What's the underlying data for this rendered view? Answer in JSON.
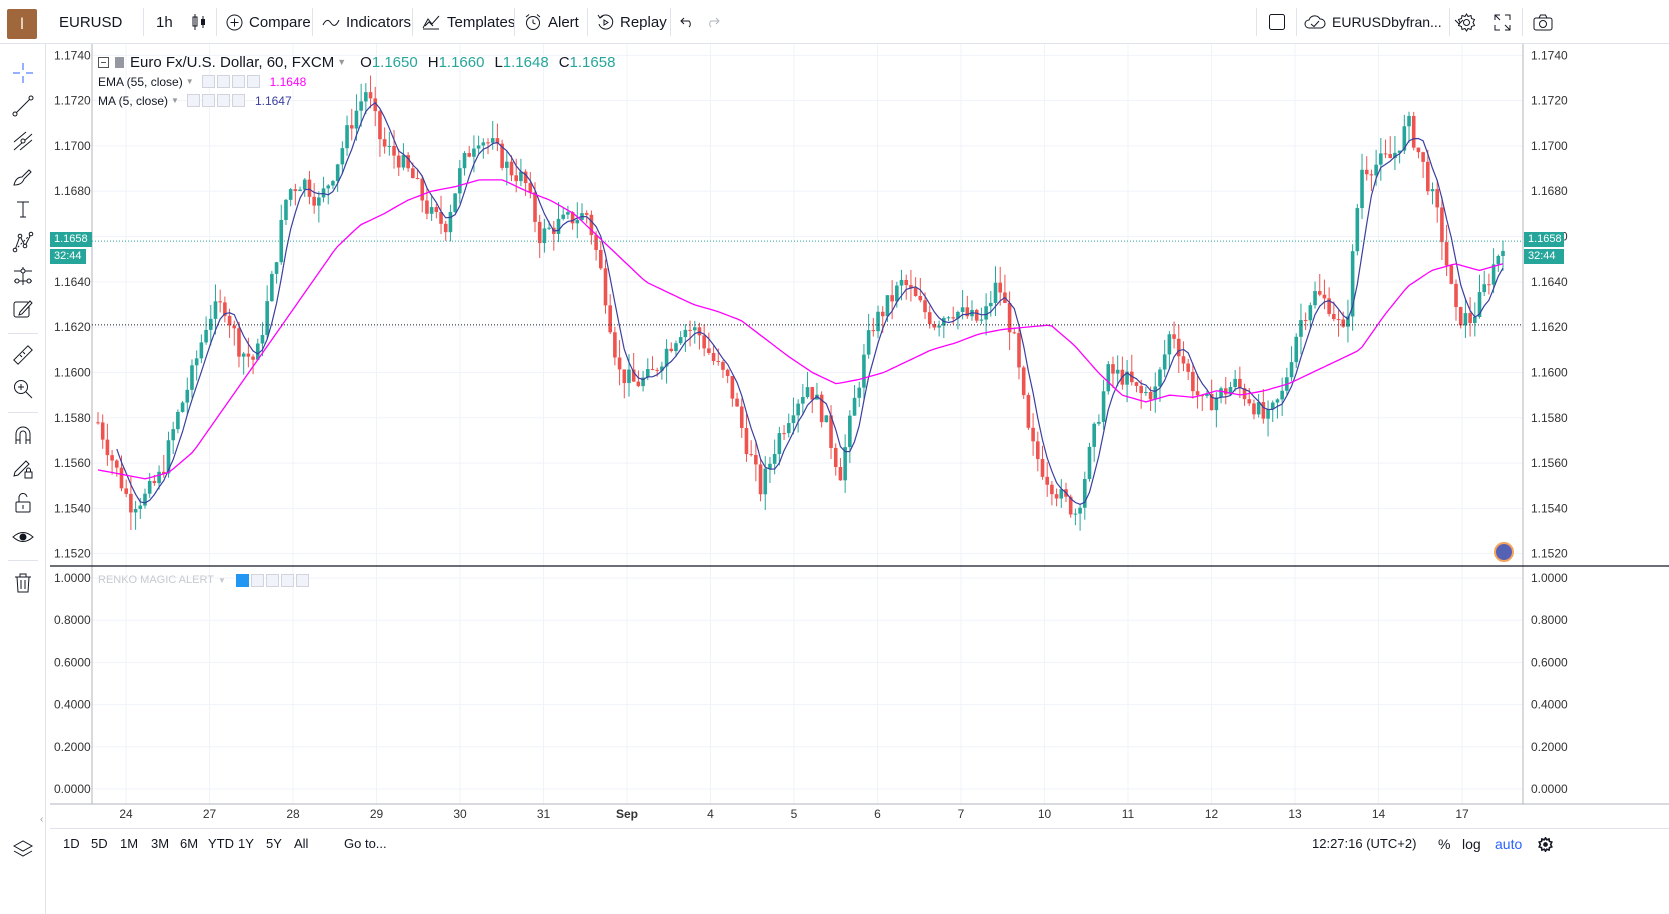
{
  "topbar": {
    "avatar_letter": "I",
    "symbol": "EURUSD",
    "interval": "1h",
    "compare": "Compare",
    "indicators": "Indicators",
    "templates": "Templates",
    "alert": "Alert",
    "replay": "Replay",
    "layout_name": "EURUSDbyfran..."
  },
  "legend": {
    "title": "Euro Fx/U.S. Dollar, 60, FXCM",
    "o_label": "O",
    "o_value": "1.1650",
    "h_label": "H",
    "h_value": "1.1660",
    "l_label": "L",
    "l_value": "1.1648",
    "c_label": "C",
    "c_value": "1.1658",
    "ema_label": "EMA (55, close)",
    "ema_value": "1.1648",
    "ma_label": "MA (5, close)",
    "ma_value": "1.1647",
    "renko_label": "RENKO MAGIC ALERT"
  },
  "price_axis": {
    "ticks": [
      "1.1740",
      "1.1720",
      "1.1700",
      "1.1680",
      "1.1660",
      "1.1640",
      "1.1620",
      "1.1600",
      "1.1580",
      "1.1560",
      "1.1540",
      "1.1520"
    ],
    "current_price": "1.1658",
    "countdown": "32:44"
  },
  "indicator_axis": {
    "ticks": [
      "1.0000",
      "0.8000",
      "0.6000",
      "0.4000",
      "0.2000",
      "0.0000"
    ]
  },
  "time_axis": {
    "labels": [
      "24",
      "27",
      "28",
      "29",
      "30",
      "31",
      "Sep",
      "4",
      "5",
      "6",
      "7",
      "10",
      "11",
      "12",
      "13",
      "14",
      "17"
    ]
  },
  "bottombar": {
    "ranges": [
      "1D",
      "5D",
      "1M",
      "3M",
      "6M",
      "YTD",
      "1Y",
      "5Y",
      "All"
    ],
    "goto": "Go to...",
    "clock": "12:27:16 (UTC+2)",
    "percent": "%",
    "log": "log",
    "auto": "auto"
  },
  "colors": {
    "up": "#26a69a",
    "down": "#ef5350",
    "ema": "#ff00ff",
    "ma": "#3a3fa0",
    "accent": "#2962ff"
  },
  "chart_data": {
    "type": "candlestick",
    "title": "Euro Fx/U.S. Dollar, 60, FXCM",
    "ylim": [
      1.1515,
      1.1745
    ],
    "x_labels": [
      "24",
      "27",
      "28",
      "29",
      "30",
      "31",
      "Sep",
      "4",
      "5",
      "6",
      "7",
      "10",
      "11",
      "12",
      "13",
      "14",
      "17"
    ],
    "series": [
      {
        "name": "EMA (55, close)",
        "last": 1.1648
      },
      {
        "name": "MA (5, close)",
        "last": 1.1647
      }
    ],
    "close_path": [
      1.1578,
      1.156,
      1.1542,
      1.1545,
      1.1555,
      1.158,
      1.16,
      1.1625,
      1.163,
      1.161,
      1.1605,
      1.164,
      1.168,
      1.1685,
      1.1675,
      1.169,
      1.171,
      1.1725,
      1.17,
      1.1695,
      1.1685,
      1.167,
      1.1665,
      1.169,
      1.1705,
      1.17,
      1.169,
      1.1685,
      1.166,
      1.1665,
      1.1668,
      1.167,
      1.164,
      1.16,
      1.1595,
      1.1598,
      1.161,
      1.162,
      1.1618,
      1.1605,
      1.1595,
      1.157,
      1.1548,
      1.157,
      1.1585,
      1.1595,
      1.158,
      1.1555,
      1.159,
      1.162,
      1.163,
      1.164,
      1.163,
      1.1622,
      1.1628,
      1.1625,
      1.1622,
      1.164,
      1.1615,
      1.157,
      1.1555,
      1.1545,
      1.1538,
      1.157,
      1.16,
      1.1598,
      1.159,
      1.1592,
      1.162,
      1.16,
      1.1585,
      1.159,
      1.1595,
      1.1588,
      1.1578,
      1.159,
      1.162,
      1.1635,
      1.163,
      1.1615,
      1.169,
      1.1692,
      1.1695,
      1.171,
      1.169,
      1.1665,
      1.1625,
      1.1623,
      1.164,
      1.1658
    ],
    "ema_path": [
      1.1557,
      1.1555,
      1.1553,
      1.1556,
      1.1565,
      1.158,
      1.1595,
      1.161,
      1.1625,
      1.164,
      1.1655,
      1.1665,
      1.167,
      1.1676,
      1.168,
      1.1682,
      1.1685,
      1.1685,
      1.168,
      1.1676,
      1.167,
      1.166,
      1.165,
      1.164,
      1.1635,
      1.163,
      1.1627,
      1.1623,
      1.1615,
      1.1607,
      1.16,
      1.1595,
      1.1597,
      1.16,
      1.1605,
      1.161,
      1.1613,
      1.1617,
      1.1619,
      1.162,
      1.1621,
      1.1612,
      1.16,
      1.159,
      1.1587,
      1.159,
      1.1589,
      1.1592,
      1.159,
      1.1592,
      1.1595,
      1.16,
      1.1605,
      1.161,
      1.1625,
      1.1638,
      1.1645,
      1.1648,
      1.1645,
      1.1648
    ]
  }
}
